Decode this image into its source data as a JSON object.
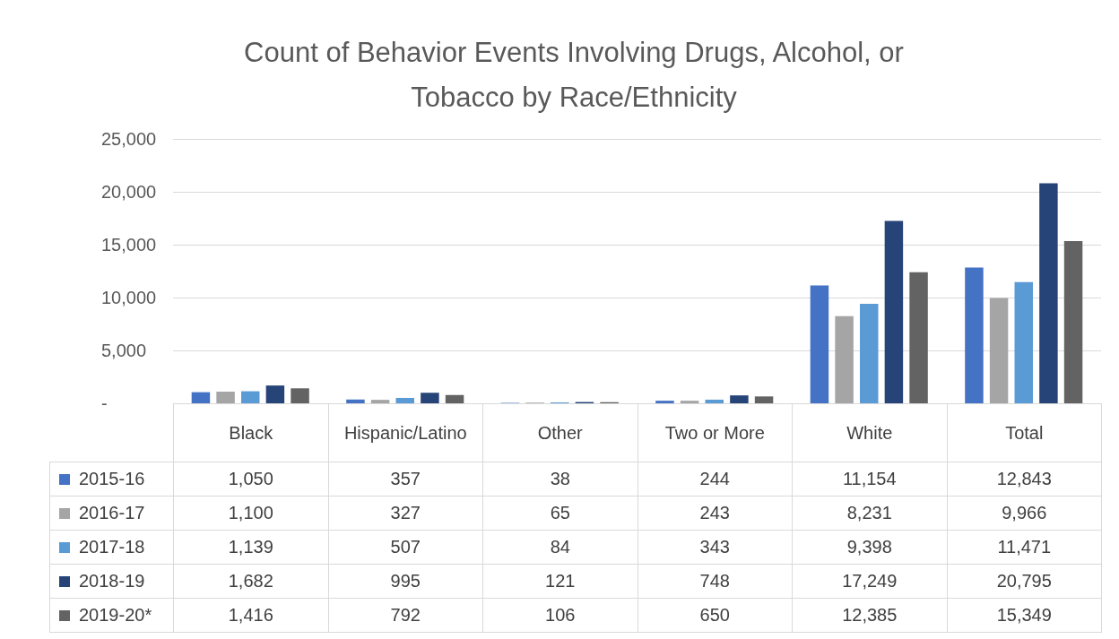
{
  "chart_data": {
    "type": "bar",
    "title": "Count of Behavior Events Involving Drugs, Alcohol, or Tobacco by Race/Ethnicity",
    "categories": [
      "Black",
      "Hispanic/Latino",
      "Other",
      "Two or More",
      "White",
      "Total"
    ],
    "series": [
      {
        "name": "2015-16",
        "color": "#4472c4",
        "values": [
          1050,
          357,
          38,
          244,
          11154,
          12843
        ],
        "value_labels": [
          "1,050",
          "357",
          "38",
          "244",
          "11,154",
          "12,843"
        ]
      },
      {
        "name": "2016-17",
        "color": "#a5a5a5",
        "values": [
          1100,
          327,
          65,
          243,
          8231,
          9966
        ],
        "value_labels": [
          "1,100",
          "327",
          "65",
          "243",
          "8,231",
          "9,966"
        ]
      },
      {
        "name": "2017-18",
        "color": "#5b9bd5",
        "values": [
          1139,
          507,
          84,
          343,
          9398,
          11471
        ],
        "value_labels": [
          "1,139",
          "507",
          "84",
          "343",
          "9,398",
          "11,471"
        ]
      },
      {
        "name": "2018-19",
        "color": "#264478",
        "values": [
          1682,
          995,
          121,
          748,
          17249,
          20795
        ],
        "value_labels": [
          "1,682",
          "995",
          "121",
          "748",
          "17,249",
          "20,795"
        ]
      },
      {
        "name": "2019-20*",
        "color": "#636363",
        "values": [
          1416,
          792,
          106,
          650,
          12385,
          15349
        ],
        "value_labels": [
          "1,416",
          "792",
          "106",
          "650",
          "12,385",
          "15,349"
        ]
      }
    ],
    "ylim": [
      0,
      25000
    ],
    "yticks": [
      {
        "value": 0,
        "label": "-"
      },
      {
        "value": 5000,
        "label": "5,000"
      },
      {
        "value": 10000,
        "label": "10,000"
      },
      {
        "value": 15000,
        "label": "15,000"
      },
      {
        "value": 20000,
        "label": "20,000"
      },
      {
        "value": 25000,
        "label": "25,000"
      }
    ],
    "grid": "y",
    "legend": "bottom left"
  }
}
